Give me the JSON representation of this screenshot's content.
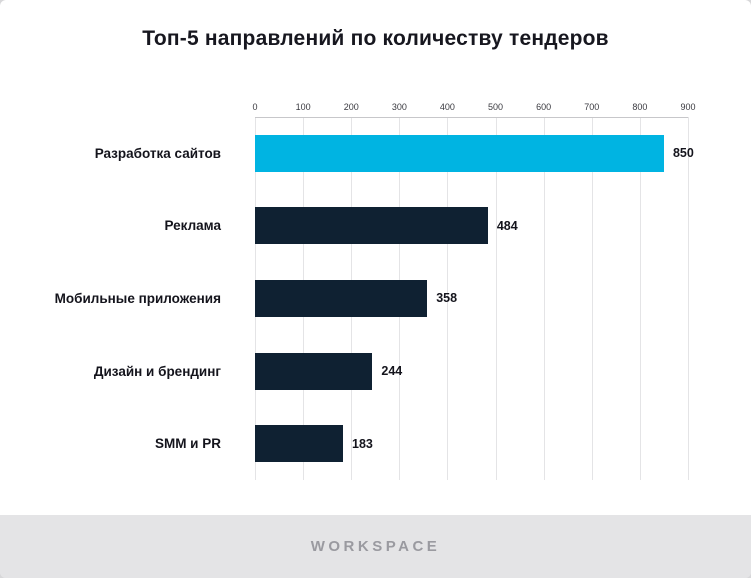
{
  "title": "Топ-5 направлений по количеству тендеров",
  "footer": {
    "brand": "WORKSPACE"
  },
  "colors": {
    "highlight_bar": "#00b4e2",
    "dark_bar": "#0f2132",
    "grid": "#e4e4e6",
    "card_background": "#ffffff",
    "page_background": "#e8e8e9",
    "text": "#14141c",
    "brand_text": "#9a9aa0"
  },
  "chart_data": {
    "type": "bar",
    "orientation": "horizontal",
    "title": "Топ-5 направлений по количеству тендеров",
    "categories": [
      "Разработка сайтов",
      "Реклама",
      "Мобильные приложения",
      "Дизайн и брендинг",
      "SMM и PR"
    ],
    "values": [
      850,
      484,
      358,
      244,
      183
    ],
    "bar_colors": [
      "#00b4e2",
      "#0f2132",
      "#0f2132",
      "#0f2132",
      "#0f2132"
    ],
    "xlabel": "",
    "ylabel": "",
    "xlim": [
      0,
      900
    ],
    "x_ticks": [
      0,
      100,
      200,
      300,
      400,
      500,
      600,
      700,
      800,
      900
    ],
    "grid": true,
    "axis_position": "top",
    "legend": "none",
    "value_labels": "outside-end"
  }
}
